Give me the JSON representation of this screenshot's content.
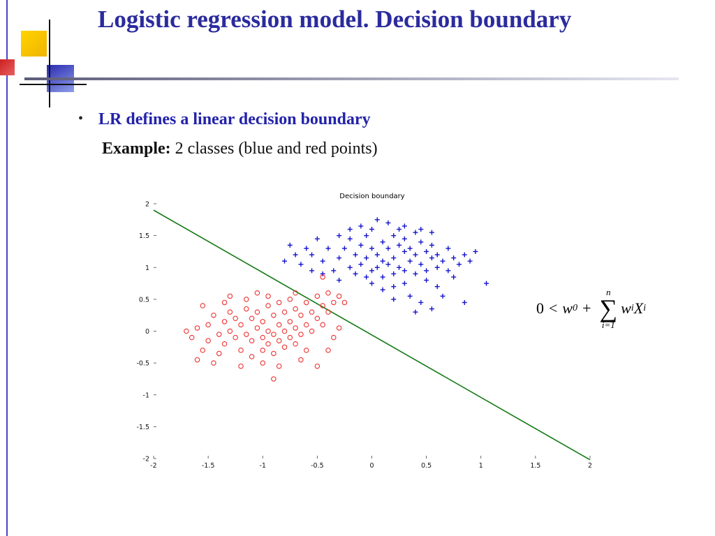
{
  "slide": {
    "title": "Logistic regression model. Decision boundary",
    "bullet_marker": "•",
    "bullet_text": "LR defines a linear decision boundary",
    "example_label": "Example:",
    "example_text": " 2 classes (blue and red points)"
  },
  "formula": {
    "zero": "0",
    "less_than": "<",
    "w": "w",
    "w_sub": "0",
    "plus": "+",
    "sum_symbol": "∑",
    "sum_upper": "n",
    "sum_lower": "i=1",
    "wi": "w",
    "wi_sub": "i",
    "xi": "X",
    "xi_sub": "i"
  },
  "colors": {
    "accent_navy": "#2b2b9e",
    "bullet_blue": "#2222aa",
    "left_line": "#4646c8",
    "square_yellow": "#ffd400",
    "square_blue": "#2a2ab0",
    "square_red": "#cc2020"
  },
  "chart_data": {
    "type": "scatter",
    "title": "Decision boundary",
    "xlabel": "",
    "ylabel": "",
    "xlim": [
      -2,
      2
    ],
    "ylim": [
      -2,
      2
    ],
    "xticks": [
      -2,
      -1.5,
      -1,
      -0.5,
      0,
      0.5,
      1,
      1.5,
      2
    ],
    "yticks": [
      -2,
      -1.5,
      -1,
      -0.5,
      0,
      0.5,
      1,
      1.5,
      2
    ],
    "grid": false,
    "legend": "none",
    "boundary_line": {
      "x1": -2,
      "y1": 1.9,
      "x2": 2,
      "y2": -2.02,
      "color": "#157a15"
    },
    "series": [
      {
        "name": "class-blue",
        "marker": "+",
        "color": "#1414cc",
        "points": [
          [
            -0.75,
            1.35
          ],
          [
            -0.6,
            1.3
          ],
          [
            -0.55,
            1.2
          ],
          [
            -0.5,
            1.45
          ],
          [
            -0.45,
            1.1
          ],
          [
            -0.4,
            1.3
          ],
          [
            -0.35,
            0.95
          ],
          [
            -0.3,
            1.5
          ],
          [
            -0.3,
            1.15
          ],
          [
            -0.25,
            1.3
          ],
          [
            -0.2,
            1.0
          ],
          [
            -0.2,
            1.45
          ],
          [
            -0.15,
            1.2
          ],
          [
            -0.15,
            0.9
          ],
          [
            -0.1,
            1.35
          ],
          [
            -0.1,
            1.05
          ],
          [
            -0.05,
            1.5
          ],
          [
            -0.05,
            1.15
          ],
          [
            0,
            1.3
          ],
          [
            0,
            0.95
          ],
          [
            0,
            1.6
          ],
          [
            0.05,
            1.2
          ],
          [
            0.05,
            1.0
          ],
          [
            0.1,
            1.4
          ],
          [
            0.1,
            1.1
          ],
          [
            0.1,
            0.85
          ],
          [
            0.15,
            1.3
          ],
          [
            0.15,
            1.05
          ],
          [
            0.2,
            1.5
          ],
          [
            0.2,
            1.15
          ],
          [
            0.2,
            0.9
          ],
          [
            0.25,
            1.35
          ],
          [
            0.25,
            1.0
          ],
          [
            0.3,
            1.25
          ],
          [
            0.3,
            1.45
          ],
          [
            0.3,
            0.95
          ],
          [
            0.35,
            1.1
          ],
          [
            0.35,
            1.3
          ],
          [
            0.4,
            1.2
          ],
          [
            0.4,
            0.9
          ],
          [
            0.45,
            1.4
          ],
          [
            0.45,
            1.05
          ],
          [
            0.5,
            1.25
          ],
          [
            0.5,
            0.95
          ],
          [
            0.55,
            1.15
          ],
          [
            0.55,
            1.35
          ],
          [
            0.6,
            1.0
          ],
          [
            0.6,
            1.2
          ],
          [
            0.65,
            1.1
          ],
          [
            0.7,
            1.3
          ],
          [
            0.7,
            0.95
          ],
          [
            0.75,
            1.15
          ],
          [
            0.8,
            1.05
          ],
          [
            0.85,
            1.2
          ],
          [
            0.9,
            1.1
          ],
          [
            0.05,
            1.75
          ],
          [
            0.15,
            1.7
          ],
          [
            0.3,
            1.65
          ],
          [
            -0.1,
            1.65
          ],
          [
            0.45,
            1.6
          ],
          [
            0.55,
            1.55
          ],
          [
            0.25,
            1.6
          ],
          [
            -0.2,
            1.6
          ],
          [
            0.4,
            1.55
          ],
          [
            0,
            0.75
          ],
          [
            0.1,
            0.65
          ],
          [
            0.2,
            0.7
          ],
          [
            -0.3,
            0.8
          ],
          [
            -0.45,
            0.9
          ],
          [
            0.3,
            0.75
          ],
          [
            0.5,
            0.8
          ],
          [
            0.6,
            0.7
          ],
          [
            0.35,
            0.55
          ],
          [
            0.45,
            0.45
          ],
          [
            0.55,
            0.35
          ],
          [
            0.2,
            0.5
          ],
          [
            0.65,
            0.55
          ],
          [
            0.75,
            0.85
          ],
          [
            1.05,
            0.75
          ],
          [
            0.85,
            0.45
          ],
          [
            -0.55,
            0.95
          ],
          [
            -0.65,
            1.05
          ],
          [
            -0.7,
            1.2
          ],
          [
            -0.8,
            1.1
          ],
          [
            0.95,
            1.25
          ],
          [
            0.4,
            0.3
          ],
          [
            -0.05,
            0.85
          ]
        ]
      },
      {
        "name": "class-red",
        "marker": "o",
        "color": "#ee3333",
        "points": [
          [
            -1.65,
            -0.1
          ],
          [
            -1.6,
            0.05
          ],
          [
            -1.55,
            -0.3
          ],
          [
            -1.5,
            0.1
          ],
          [
            -1.5,
            -0.15
          ],
          [
            -1.45,
            0.25
          ],
          [
            -1.4,
            -0.05
          ],
          [
            -1.4,
            -0.35
          ],
          [
            -1.35,
            0.15
          ],
          [
            -1.35,
            -0.2
          ],
          [
            -1.3,
            0.3
          ],
          [
            -1.3,
            0.0
          ],
          [
            -1.25,
            -0.1
          ],
          [
            -1.25,
            0.2
          ],
          [
            -1.2,
            -0.3
          ],
          [
            -1.2,
            0.1
          ],
          [
            -1.15,
            -0.05
          ],
          [
            -1.15,
            0.35
          ],
          [
            -1.1,
            0.2
          ],
          [
            -1.1,
            -0.15
          ],
          [
            -1.1,
            -0.4
          ],
          [
            -1.05,
            0.05
          ],
          [
            -1.05,
            0.3
          ],
          [
            -1.0,
            -0.1
          ],
          [
            -1.0,
            0.15
          ],
          [
            -1.0,
            -0.3
          ],
          [
            -0.95,
            0.4
          ],
          [
            -0.95,
            0.0
          ],
          [
            -0.95,
            -0.2
          ],
          [
            -0.9,
            0.25
          ],
          [
            -0.9,
            -0.05
          ],
          [
            -0.9,
            -0.35
          ],
          [
            -0.85,
            0.1
          ],
          [
            -0.85,
            0.45
          ],
          [
            -0.85,
            -0.15
          ],
          [
            -0.8,
            0.3
          ],
          [
            -0.8,
            0.0
          ],
          [
            -0.8,
            -0.25
          ],
          [
            -0.75,
            0.15
          ],
          [
            -0.75,
            0.5
          ],
          [
            -0.75,
            -0.1
          ],
          [
            -0.7,
            0.35
          ],
          [
            -0.7,
            0.05
          ],
          [
            -0.7,
            -0.2
          ],
          [
            -0.65,
            0.25
          ],
          [
            -0.65,
            -0.05
          ],
          [
            -0.6,
            0.45
          ],
          [
            -0.6,
            0.1
          ],
          [
            -0.6,
            -0.3
          ],
          [
            -0.55,
            0.3
          ],
          [
            -0.55,
            0.0
          ],
          [
            -0.5,
            0.2
          ],
          [
            -0.5,
            0.55
          ],
          [
            -0.45,
            0.4
          ],
          [
            -0.45,
            0.1
          ],
          [
            -0.4,
            0.3
          ],
          [
            -0.4,
            0.6
          ],
          [
            -0.35,
            0.45
          ],
          [
            -0.3,
            0.55
          ],
          [
            -1.45,
            -0.5
          ],
          [
            -1.2,
            -0.55
          ],
          [
            -1.0,
            -0.5
          ],
          [
            -0.85,
            -0.55
          ],
          [
            -0.9,
            -0.75
          ],
          [
            -0.65,
            -0.45
          ],
          [
            -0.5,
            -0.55
          ],
          [
            -1.55,
            0.4
          ],
          [
            -1.35,
            0.45
          ],
          [
            -1.15,
            0.5
          ],
          [
            -1.3,
            0.55
          ],
          [
            -0.95,
            0.55
          ],
          [
            -1.05,
            0.6
          ],
          [
            -0.7,
            0.6
          ],
          [
            -1.7,
            0.0
          ],
          [
            -0.35,
            -0.1
          ],
          [
            -0.4,
            -0.3
          ],
          [
            -0.3,
            0.05
          ],
          [
            -1.6,
            -0.45
          ],
          [
            -0.25,
            0.45
          ],
          [
            -0.45,
            0.85
          ]
        ]
      }
    ]
  }
}
